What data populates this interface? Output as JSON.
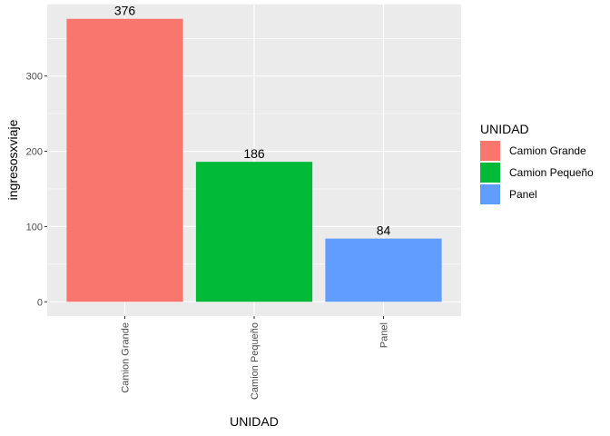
{
  "chart_data": {
    "type": "bar",
    "categories": [
      "Camion Grande",
      "Camion Pequeño",
      "Panel"
    ],
    "values": [
      376,
      186,
      84
    ],
    "colors": [
      "#F8766D",
      "#00BA38",
      "#619CFF"
    ],
    "xlabel": "UNIDAD",
    "ylabel": "ingresosxviaje",
    "ylim": [
      -19,
      395
    ],
    "yticks": [
      0,
      100,
      200,
      300
    ],
    "grid": true,
    "legend": {
      "position": "right",
      "title": "UNIDAD",
      "entries": [
        "Camion Grande",
        "Camion Pequeño",
        "Panel"
      ]
    }
  }
}
